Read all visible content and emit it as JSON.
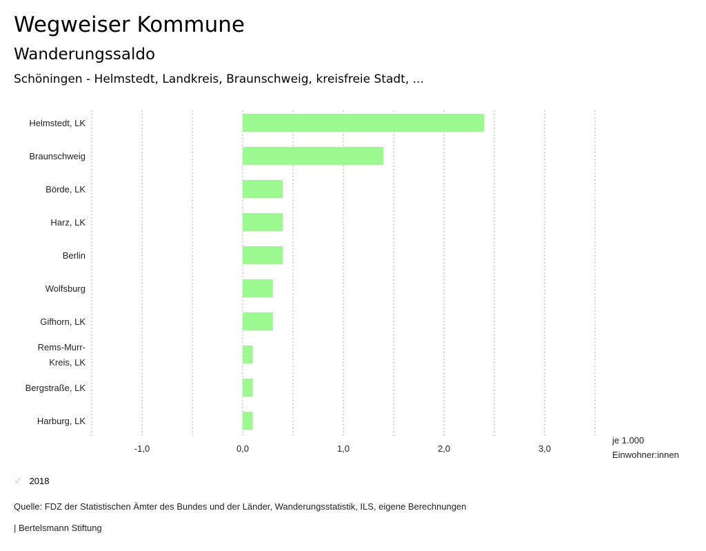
{
  "header": {
    "title": "Wegweiser Kommune",
    "subtitle": "Wanderungssaldo",
    "regions": "Schöningen - Helmstedt, Landkreis, Braunschweig, kreisfreie Stadt, ..."
  },
  "chart_data": {
    "type": "bar",
    "orientation": "horizontal",
    "categories": [
      "Helmstedt, LK",
      "Braunschweig",
      "Börde, LK",
      "Harz, LK",
      "Berlin",
      "Wolfsburg",
      "Gifhorn, LK",
      "Rems-Murr-Kreis, LK",
      "Bergstraße, LK",
      "Harburg, LK"
    ],
    "category_lines": [
      [
        "Helmstedt, LK"
      ],
      [
        "Braunschweig"
      ],
      [
        "Börde, LK"
      ],
      [
        "Harz, LK"
      ],
      [
        "Berlin"
      ],
      [
        "Wolfsburg"
      ],
      [
        "Gifhorn, LK"
      ],
      [
        "Rems-Murr-",
        "Kreis, LK"
      ],
      [
        "Bergstraße, LK"
      ],
      [
        "Harburg, LK"
      ]
    ],
    "series": [
      {
        "name": "2018",
        "color": "#9cf98f",
        "values": [
          2.4,
          1.4,
          0.4,
          0.4,
          0.4,
          0.3,
          0.3,
          0.1,
          0.1,
          0.1
        ]
      }
    ],
    "xlim": [
      -1.5,
      3.5
    ],
    "xticks": [
      -1,
      0,
      1,
      2,
      3
    ],
    "xtick_labels": [
      "-1,0",
      "0,0",
      "1,0",
      "2,0",
      "3,0"
    ],
    "gridlines": [
      -1.5,
      -1,
      -0.5,
      0,
      0.5,
      1,
      1.5,
      2,
      2.5,
      3,
      3.5
    ],
    "xlabel_lines": [
      "je 1.000",
      "Einwohner:innen"
    ],
    "grid": true,
    "legend_position": "bottom-left"
  },
  "legend": {
    "label": "2018"
  },
  "footer": {
    "source": "Quelle: FDZ der Statistischen Ämter des Bundes und der Länder, Wanderungsstatistik, ILS, eigene Berechnungen",
    "brand": "| Bertelsmann Stiftung"
  }
}
